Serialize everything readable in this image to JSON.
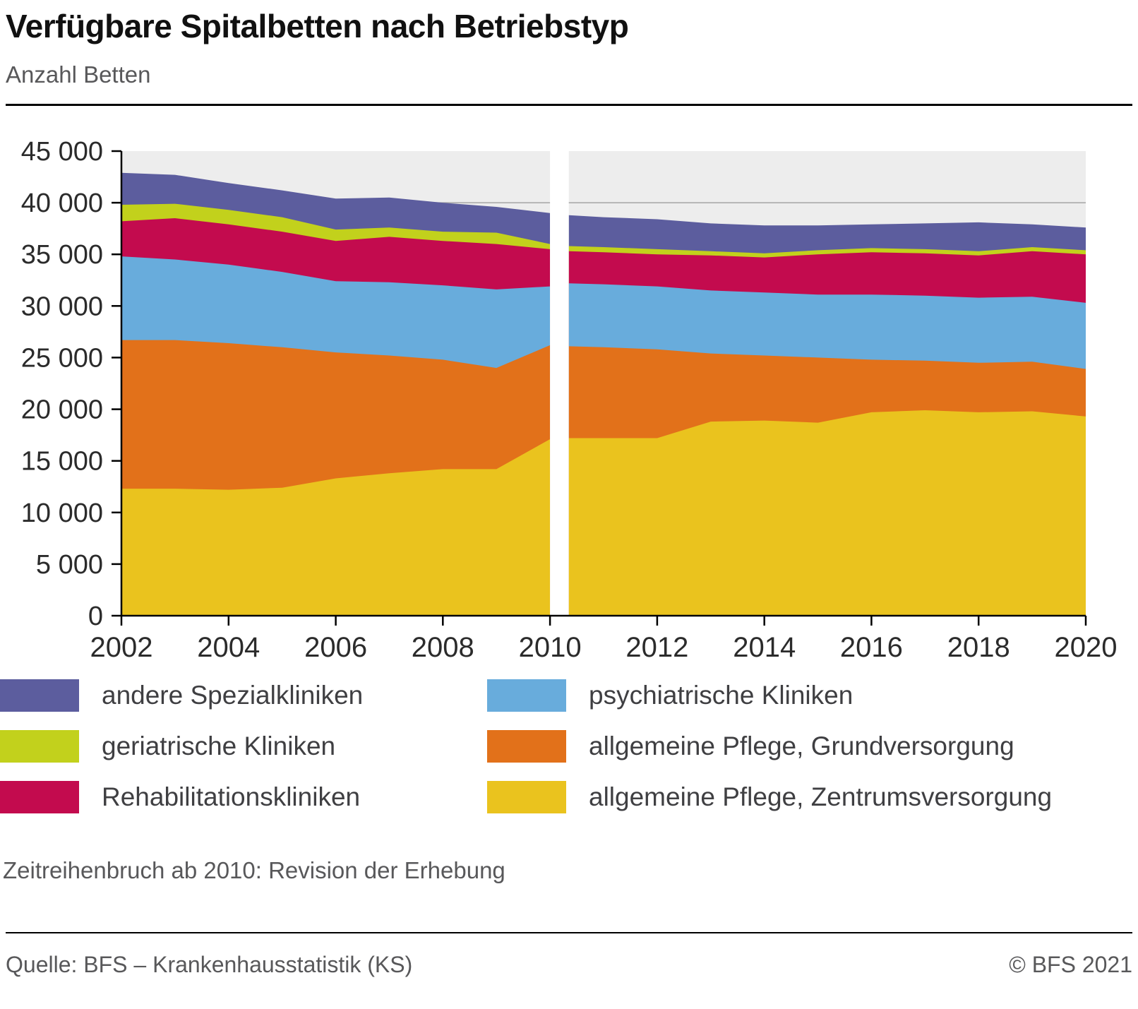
{
  "header": {
    "title": "Verfügbare Spitalbetten nach Betriebstyp",
    "subtitle": "Anzahl Betten"
  },
  "footnote": "Zeitreihenbruch ab 2010: Revision der Erhebung",
  "footer": {
    "source": "Quelle: BFS – Krankenhausstatistik (KS)",
    "copyright": "© BFS 2021"
  },
  "legend": {
    "items": [
      {
        "label": "andere Spezialkliniken",
        "color": "#5c5d9e",
        "series_id": "andere-spezialkliniken"
      },
      {
        "label": "psychiatrische Kliniken",
        "color": "#68acdc",
        "series_id": "psychiatrische-kliniken"
      },
      {
        "label": "geriatrische Kliniken",
        "color": "#c2d11c",
        "series_id": "geriatrische-kliniken"
      },
      {
        "label": "allgemeine Pflege, Grundversorgung",
        "color": "#e2711a",
        "series_id": "allgemeine-pflege-grundversorgung"
      },
      {
        "label": "Rehabilitationskliniken",
        "color": "#c30b4e",
        "series_id": "rehabilitationskliniken"
      },
      {
        "label": "allgemeine Pflege, Zentrumsversorgung",
        "color": "#eac31e",
        "series_id": "allgemeine-pflege-zentrumsversorgung"
      }
    ]
  },
  "chart_data": {
    "type": "area",
    "stacked": true,
    "title": "Verfügbare Spitalbetten nach Betriebstyp",
    "ylabel": "Anzahl Betten",
    "ylim": [
      0,
      45000
    ],
    "x_range": [
      2002,
      2020
    ],
    "plot_bg": "#ededed",
    "grid_color": "#a6a6a6",
    "axis_color": "#000000",
    "gridlines": [
      40000
    ],
    "yticks": {
      "values": [
        0,
        5000,
        10000,
        15000,
        20000,
        25000,
        30000,
        35000,
        40000,
        45000
      ],
      "labels": [
        "0",
        "5 000",
        "10 000",
        "15 000",
        "20 000",
        "25 000",
        "30 000",
        "35 000",
        "40 000",
        "45 000"
      ]
    },
    "xticks": [
      2002,
      2004,
      2006,
      2008,
      2010,
      2012,
      2014,
      2016,
      2018,
      2020
    ],
    "break": {
      "start": 2010,
      "end": 2010.35,
      "note": "Zeitreihenbruch ab 2010: Revision der Erhebung"
    },
    "years_pre": [
      2002,
      2003,
      2004,
      2005,
      2006,
      2007,
      2008,
      2009,
      2010
    ],
    "years_post": [
      2010,
      2011,
      2012,
      2013,
      2014,
      2015,
      2016,
      2017,
      2018,
      2019,
      2020
    ],
    "series": [
      {
        "id": "allgemeine-pflege-zentrumsversorgung",
        "name": "allgemeine Pflege, Zentrumsversorgung",
        "color": "#eac31e",
        "values_pre": [
          12300,
          12300,
          12200,
          12400,
          13300,
          13800,
          14200,
          14200,
          17100
        ],
        "values_post": [
          17200,
          17200,
          17200,
          18800,
          18900,
          18700,
          19700,
          19900,
          19700,
          19800,
          19300
        ]
      },
      {
        "id": "allgemeine-pflege-grundversorgung",
        "name": "allgemeine Pflege, Grundversorgung",
        "color": "#e2711a",
        "values_pre": [
          14400,
          14400,
          14200,
          13600,
          12200,
          11400,
          10600,
          9800,
          9100
        ],
        "values_post": [
          8900,
          8800,
          8600,
          6600,
          6300,
          6300,
          5100,
          4800,
          4800,
          4800,
          4600
        ]
      },
      {
        "id": "psychiatrische-kliniken",
        "name": "psychiatrische Kliniken",
        "color": "#68acdc",
        "values_pre": [
          8100,
          7800,
          7600,
          7300,
          6900,
          7100,
          7200,
          7600,
          5700
        ],
        "values_post": [
          6100,
          6100,
          6100,
          6100,
          6100,
          6100,
          6300,
          6300,
          6300,
          6300,
          6400
        ]
      },
      {
        "id": "rehabilitationskliniken",
        "name": "Rehabilitationskliniken",
        "color": "#c30b4e",
        "values_pre": [
          3400,
          4000,
          3900,
          3900,
          3900,
          4400,
          4300,
          4400,
          3600
        ],
        "values_post": [
          3100,
          3100,
          3100,
          3400,
          3400,
          3900,
          4100,
          4100,
          4100,
          4400,
          4700
        ]
      },
      {
        "id": "geriatrische-kliniken",
        "name": "geriatrische Kliniken",
        "color": "#c2d11c",
        "values_pre": [
          1600,
          1400,
          1400,
          1400,
          1100,
          900,
          900,
          1100,
          500
        ],
        "values_post": [
          500,
          500,
          500,
          400,
          400,
          400,
          400,
          400,
          400,
          400,
          400
        ]
      },
      {
        "id": "andere-spezialkliniken",
        "name": "andere Spezialkliniken",
        "color": "#5c5d9e",
        "values_pre": [
          3100,
          2800,
          2600,
          2600,
          3000,
          2900,
          2800,
          2500,
          3000
        ],
        "values_post": [
          3000,
          2900,
          2900,
          2700,
          2700,
          2400,
          2300,
          2500,
          2800,
          2200,
          2200
        ]
      }
    ]
  }
}
